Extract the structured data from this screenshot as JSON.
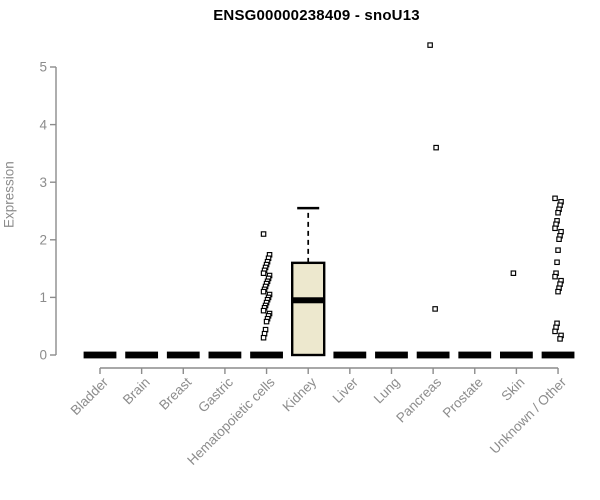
{
  "chart_data": {
    "type": "box",
    "title": "ENSG00000238409 - snoU13",
    "ylabel": "Expression",
    "xlabel": "",
    "ylim": [
      0,
      5
    ],
    "yticks": [
      0,
      1,
      2,
      3,
      4,
      5
    ],
    "grid": false,
    "legend": "none",
    "colors": {
      "box_fill": "#ede8ce",
      "box_stroke": "#000000",
      "median": "#000000",
      "axis": "#8c8c8c",
      "tick_label": "#8c8c8c",
      "title": "#000000",
      "point_stroke": "#000000",
      "point_fill": "#ffffff",
      "background": "#ffffff"
    },
    "categories": [
      "Bladder",
      "Brain",
      "Breast",
      "Gastric",
      "Hematopoietic cells",
      "Kidney",
      "Liver",
      "Lung",
      "Pancreas",
      "Prostate",
      "Skin",
      "Unknown / Other"
    ],
    "boxes": [
      {
        "category": "Bladder",
        "low": 0,
        "q1": 0,
        "median": 0,
        "q3": 0,
        "high": 0,
        "points": []
      },
      {
        "category": "Brain",
        "low": 0,
        "q1": 0,
        "median": 0,
        "q3": 0,
        "high": 0,
        "points": []
      },
      {
        "category": "Breast",
        "low": 0,
        "q1": 0,
        "median": 0,
        "q3": 0,
        "high": 0,
        "points": []
      },
      {
        "category": "Gastric",
        "low": 0,
        "q1": 0,
        "median": 0,
        "q3": 0,
        "high": 0,
        "points": []
      },
      {
        "category": "Hematopoietic cells",
        "low": 0,
        "q1": 0,
        "median": 0,
        "q3": 0,
        "high": 0,
        "points": [
          2.1,
          1.74,
          1.68,
          1.62,
          1.57,
          1.52,
          1.47,
          1.42,
          1.38,
          1.33,
          1.28,
          1.24,
          1.19,
          1.14,
          1.1,
          1.05,
          1.0,
          0.96,
          0.91,
          0.86,
          0.82,
          0.77,
          0.72,
          0.68,
          0.63,
          0.58,
          0.44,
          0.37,
          0.3
        ]
      },
      {
        "category": "Kidney",
        "low": 0,
        "q1": 0,
        "median": 0.95,
        "q3": 1.6,
        "high": 2.55,
        "points": []
      },
      {
        "category": "Liver",
        "low": 0,
        "q1": 0,
        "median": 0,
        "q3": 0,
        "high": 0,
        "points": []
      },
      {
        "category": "Lung",
        "low": 0,
        "q1": 0,
        "median": 0,
        "q3": 0,
        "high": 0,
        "points": []
      },
      {
        "category": "Pancreas",
        "low": 0,
        "q1": 0,
        "median": 0,
        "q3": 0,
        "high": 0,
        "points": [
          5.38,
          3.6,
          0.8
        ]
      },
      {
        "category": "Prostate",
        "low": 0,
        "q1": 0,
        "median": 0,
        "q3": 0,
        "high": 0,
        "points": []
      },
      {
        "category": "Skin",
        "low": 0,
        "q1": 0,
        "median": 0,
        "q3": 0,
        "high": 0,
        "points": [
          1.42
        ]
      },
      {
        "category": "Unknown / Other",
        "low": 0,
        "q1": 0,
        "median": 0,
        "q3": 0,
        "high": 0,
        "points": [
          2.72,
          2.66,
          2.6,
          2.53,
          2.47,
          2.33,
          2.27,
          2.2,
          2.14,
          2.07,
          2.01,
          1.82,
          1.61,
          1.42,
          1.36,
          1.29,
          1.23,
          1.16,
          1.1,
          0.55,
          0.48,
          0.41,
          0.34,
          0.28
        ]
      }
    ]
  }
}
